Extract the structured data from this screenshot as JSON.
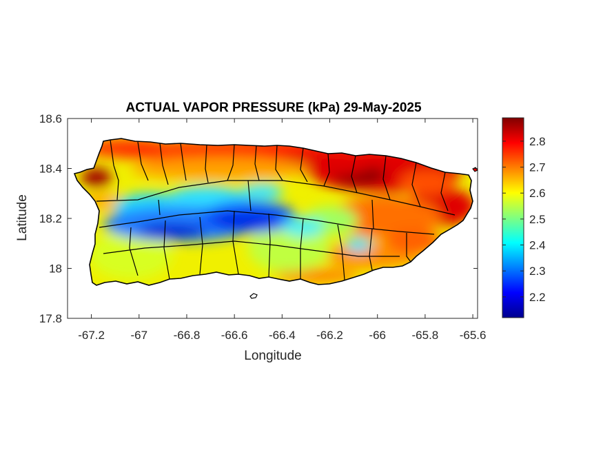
{
  "title": "ACTUAL VAPOR PRESSURE (kPa) 29-May-2025",
  "xlabel": "Longitude",
  "ylabel": "Latitude",
  "axes": {
    "xlim": [
      -67.3,
      -65.58
    ],
    "ylim": [
      17.8,
      18.6
    ],
    "xticks": [
      -67.2,
      -67,
      -66.8,
      -66.6,
      -66.4,
      -66.2,
      -66,
      -65.8,
      -65.6
    ],
    "xtick_labels": [
      "-67.2",
      "-67",
      "-66.8",
      "-66.6",
      "-66.4",
      "-66.2",
      "-66",
      "-65.8",
      "-65.6"
    ],
    "yticks": [
      17.8,
      18,
      18.2,
      18.4,
      18.6
    ],
    "ytick_labels": [
      "17.8",
      "18",
      "18.2",
      "18.4",
      "18.6"
    ]
  },
  "colorbar": {
    "colormap": "jet",
    "range": [
      2.12,
      2.89
    ],
    "ticks": [
      2.2,
      2.3,
      2.4,
      2.5,
      2.6,
      2.7,
      2.8
    ],
    "tick_labels": [
      "2.2",
      "2.3",
      "2.4",
      "2.5",
      "2.6",
      "2.7",
      "2.8"
    ]
  },
  "map": {
    "region": "Puerto Rico",
    "field": "actual vapor pressure (kPa)",
    "municipal_boundaries": true,
    "colors": {
      "boundary": "#000000",
      "low": "#00008f",
      "high": "#800000"
    }
  }
}
